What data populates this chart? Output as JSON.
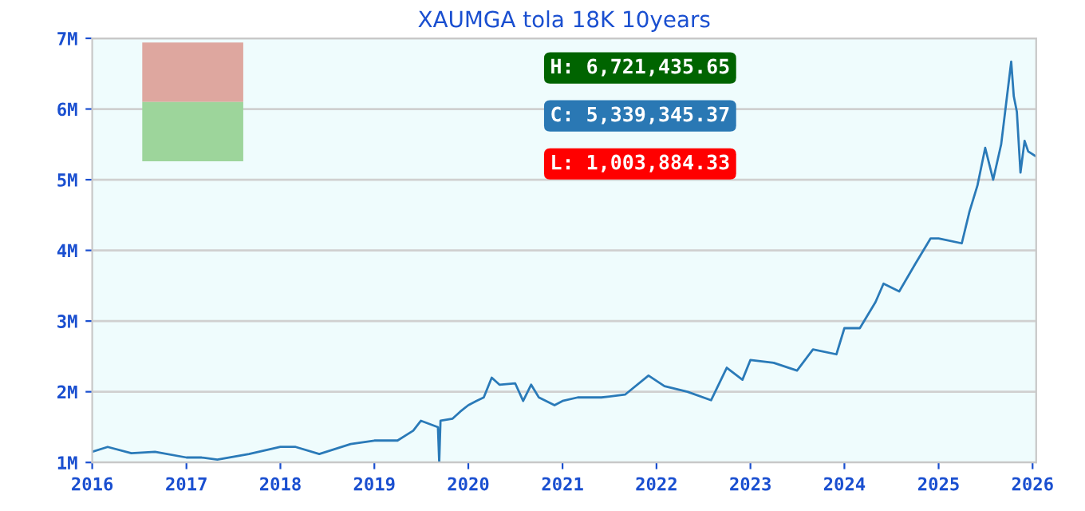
{
  "chart_data": {
    "type": "line",
    "title": "XAUMGA tola 18K 10years",
    "x": [
      "2016-01-01",
      "2016-03-01",
      "2016-06-01",
      "2016-09-01",
      "2017-01-01",
      "2017-03-01",
      "2017-05-01",
      "2017-09-01",
      "2018-01-01",
      "2018-03-01",
      "2018-06-01",
      "2018-10-01",
      "2019-01-01",
      "2019-04-01",
      "2019-06-01",
      "2019-07-01",
      "2019-09-05",
      "2019-09-10",
      "2019-09-15",
      "2019-11-01",
      "2019-12-01",
      "2020-01-01",
      "2020-02-01",
      "2020-03-01",
      "2020-04-01",
      "2020-05-01",
      "2020-07-01",
      "2020-08-01",
      "2020-09-01",
      "2020-10-01",
      "2020-12-01",
      "2021-01-01",
      "2021-03-01",
      "2021-06-01",
      "2021-09-01",
      "2021-12-01",
      "2022-02-01",
      "2022-05-01",
      "2022-08-01",
      "2022-10-01",
      "2022-12-01",
      "2023-01-01",
      "2023-04-01",
      "2023-07-01",
      "2023-09-01",
      "2023-12-01",
      "2024-01-01",
      "2024-03-01",
      "2024-05-01",
      "2024-06-01",
      "2024-08-01",
      "2024-10-01",
      "2024-12-01",
      "2025-01-01",
      "2025-04-01",
      "2025-05-01",
      "2025-06-01",
      "2025-07-01",
      "2025-08-01",
      "2025-09-01",
      "2025-10-10",
      "2025-10-20",
      "2025-11-01",
      "2025-11-15",
      "2025-12-01",
      "2025-12-15",
      "2026-01-10"
    ],
    "series": [
      {
        "color": "#2a7ab8",
        "values": [
          1.15,
          1.22,
          1.13,
          1.15,
          1.07,
          1.07,
          1.04,
          1.12,
          1.22,
          1.22,
          1.12,
          1.26,
          1.31,
          1.31,
          1.45,
          1.59,
          1.5,
          1.0,
          1.59,
          1.62,
          1.72,
          1.81,
          1.87,
          1.92,
          2.2,
          2.1,
          2.12,
          1.87,
          2.1,
          1.92,
          1.81,
          1.87,
          1.92,
          1.92,
          1.96,
          2.23,
          2.08,
          2.0,
          1.88,
          2.34,
          2.17,
          2.45,
          2.41,
          2.3,
          2.6,
          2.53,
          2.9,
          2.9,
          3.27,
          3.53,
          3.42,
          3.8,
          4.17,
          4.17,
          4.1,
          4.55,
          4.92,
          5.45,
          5.0,
          5.5,
          6.67,
          6.18,
          5.96,
          5.1,
          5.55,
          5.4,
          5.34
        ]
      }
    ],
    "xlim": [
      "2016-01-01",
      "2026-01-15"
    ],
    "xticks": [
      "2016",
      "2017",
      "2018",
      "2019",
      "2020",
      "2021",
      "2022",
      "2023",
      "2024",
      "2025",
      "2026"
    ],
    "ylim": [
      1,
      7
    ],
    "yticks": [
      {
        "value": 1,
        "label": "1M"
      },
      {
        "value": 2,
        "label": "2M"
      },
      {
        "value": 3,
        "label": "3M"
      },
      {
        "value": 4,
        "label": "4M"
      },
      {
        "value": 5,
        "label": "5M"
      },
      {
        "value": 6,
        "label": "6M"
      },
      {
        "value": 7,
        "label": "7M"
      }
    ],
    "grid": "y",
    "annotations": [
      "H: 6,721,435.65",
      "C: 5,339,345.37",
      "L: 1,003,884.33"
    ]
  }
}
